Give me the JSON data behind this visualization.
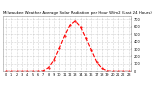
{
  "title": "Milwaukee Weather Average Solar Radiation per Hour W/m2 (Last 24 Hours)",
  "hours": [
    0,
    1,
    2,
    3,
    4,
    5,
    6,
    7,
    8,
    9,
    10,
    11,
    12,
    13,
    14,
    15,
    16,
    17,
    18,
    19,
    20,
    21,
    22,
    23
  ],
  "values": [
    0,
    0,
    0,
    0,
    0,
    0,
    0,
    5,
    50,
    150,
    310,
    480,
    620,
    680,
    600,
    450,
    290,
    130,
    40,
    5,
    0,
    0,
    0,
    0
  ],
  "line_color": "#ff0000",
  "line_style": "--",
  "line_width": 0.8,
  "bg_color": "#ffffff",
  "plot_bg_color": "#ffffff",
  "grid_color": "#aaaaaa",
  "grid_style": ":",
  "tick_color": "#000000",
  "title_color": "#000000",
  "title_fontsize": 2.8,
  "tick_fontsize": 2.5,
  "ylim": [
    0,
    750
  ],
  "yticks": [
    0,
    100,
    200,
    300,
    400,
    500,
    600,
    700
  ],
  "marker_size": 1.0
}
